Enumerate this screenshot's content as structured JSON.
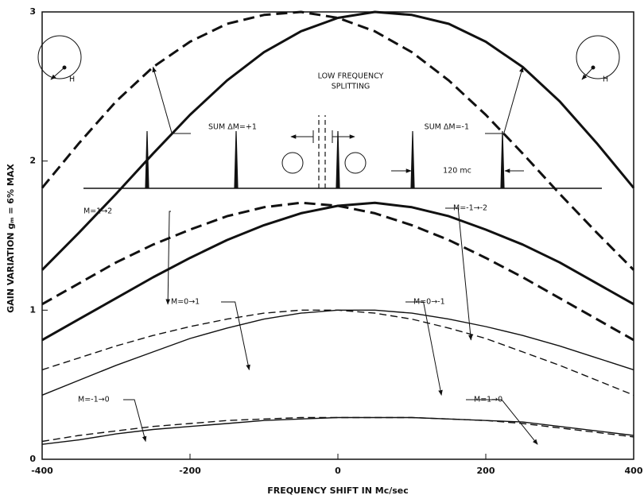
{
  "chart_data": {
    "type": "line",
    "xlabel": "FREQUENCY SHIFT IN Mc/sec",
    "ylabel": "GAIN VARIATION  gₘ = 6% MAX",
    "x": [
      -400,
      -350,
      -300,
      -250,
      -200,
      -150,
      -100,
      -50,
      0,
      50,
      100,
      150,
      200,
      250,
      300,
      350,
      400
    ],
    "xlim": [
      -400,
      400
    ],
    "xticks": [
      -400,
      -200,
      0,
      200,
      400
    ],
    "ylim": [
      0,
      3
    ],
    "yticks": [
      0,
      1,
      2,
      3
    ],
    "grid": false,
    "series": [
      {
        "name": "SUM ΔM=+1",
        "color": "#111111",
        "dashed": true,
        "linewidth": 3,
        "values": [
          1.82,
          2.12,
          2.4,
          2.63,
          2.8,
          2.92,
          2.98,
          3.0,
          2.96,
          2.87,
          2.73,
          2.54,
          2.31,
          2.05,
          1.78,
          1.52,
          1.27
        ]
      },
      {
        "name": "SUM ΔM=-1",
        "color": "#111111",
        "dashed": false,
        "linewidth": 3,
        "values": [
          1.27,
          1.52,
          1.78,
          2.05,
          2.31,
          2.54,
          2.73,
          2.87,
          2.96,
          3.0,
          2.98,
          2.92,
          2.8,
          2.63,
          2.4,
          2.12,
          1.82
        ]
      },
      {
        "name": "M=1→2",
        "color": "#111111",
        "dashed": true,
        "linewidth": 3,
        "values": [
          1.04,
          1.18,
          1.32,
          1.44,
          1.54,
          1.63,
          1.69,
          1.72,
          1.7,
          1.65,
          1.57,
          1.47,
          1.35,
          1.22,
          1.08,
          0.94,
          0.8
        ]
      },
      {
        "name": "M=-1→-2",
        "color": "#111111",
        "dashed": false,
        "linewidth": 3,
        "values": [
          0.8,
          0.94,
          1.08,
          1.22,
          1.35,
          1.47,
          1.57,
          1.65,
          1.7,
          1.72,
          1.69,
          1.63,
          1.54,
          1.44,
          1.32,
          1.18,
          1.04
        ]
      },
      {
        "name": "M=0→1",
        "color": "#111111",
        "dashed": true,
        "linewidth": 1.4,
        "values": [
          0.6,
          0.68,
          0.76,
          0.83,
          0.89,
          0.94,
          0.98,
          1.0,
          1.0,
          0.98,
          0.94,
          0.88,
          0.81,
          0.72,
          0.63,
          0.53,
          0.43
        ]
      },
      {
        "name": "M=0→-1",
        "color": "#111111",
        "dashed": false,
        "linewidth": 1.4,
        "values": [
          0.43,
          0.53,
          0.63,
          0.72,
          0.81,
          0.88,
          0.94,
          0.98,
          1.0,
          1.0,
          0.98,
          0.94,
          0.89,
          0.83,
          0.76,
          0.68,
          0.6
        ]
      },
      {
        "name": "M=-1→0",
        "color": "#111111",
        "dashed": true,
        "linewidth": 1.4,
        "values": [
          0.12,
          0.16,
          0.19,
          0.22,
          0.24,
          0.26,
          0.27,
          0.28,
          0.28,
          0.28,
          0.28,
          0.27,
          0.26,
          0.24,
          0.21,
          0.18,
          0.15
        ]
      },
      {
        "name": "M=1→0",
        "color": "#111111",
        "dashed": false,
        "linewidth": 1.4,
        "values": [
          0.1,
          0.13,
          0.17,
          0.2,
          0.22,
          0.24,
          0.26,
          0.27,
          0.28,
          0.28,
          0.28,
          0.27,
          0.26,
          0.25,
          0.22,
          0.19,
          0.16
        ]
      }
    ],
    "annotations": [
      "LOW FREQUENCY",
      "SPLITTING",
      "120 mc",
      "H",
      "H"
    ]
  }
}
